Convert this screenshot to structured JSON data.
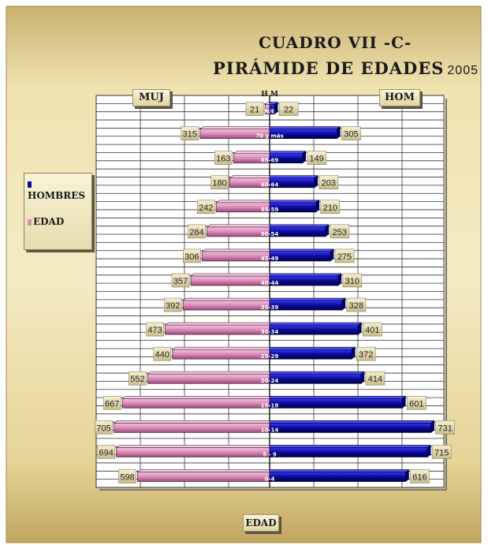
{
  "title": "CUADRO VII -C-",
  "subtitle": "PIRÁMIDE DE EDADES",
  "year": "2005",
  "left_tag": "MUJ",
  "right_tag": "HOM",
  "top_tag": "H M",
  "xlabel": "EDAD",
  "legend": {
    "hombres": "HOMBRES",
    "edad": "EDAD"
  },
  "colors": {
    "women": "#d98cb8",
    "men": "#0a0a9a",
    "background": "#e8d9a0"
  },
  "chart_data": {
    "type": "bar",
    "orientation": "horizontal-population-pyramid",
    "categories": [
      "0-4",
      "5 - 9",
      "10-14",
      "15-19",
      "20-24",
      "25-29",
      "30-34",
      "35-39",
      "40-44",
      "45-49",
      "50-54",
      "55-59",
      "60-64",
      "65-69",
      "70 y más",
      "N/E"
    ],
    "series": [
      {
        "name": "MUJ",
        "values": [
          598,
          694,
          705,
          667,
          552,
          440,
          473,
          392,
          357,
          306,
          284,
          242,
          180,
          163,
          315,
          21
        ]
      },
      {
        "name": "HOM",
        "values": [
          616,
          715,
          731,
          601,
          414,
          372,
          401,
          328,
          310,
          275,
          253,
          210,
          203,
          149,
          305,
          22
        ]
      }
    ],
    "women_labels": [
      "598",
      "694",
      "705",
      "667",
      "552",
      "440",
      "473",
      "392",
      "357",
      "306",
      "284",
      "242",
      "180",
      "163",
      "315",
      "21"
    ],
    "men_labels": [
      "616",
      "715",
      "731",
      "601",
      "414",
      "372",
      "401",
      "328",
      "310",
      "275",
      "253",
      "210",
      "203",
      "149",
      "305",
      "22"
    ],
    "xlim": [
      -750,
      750
    ],
    "grid": true,
    "legend_position": "left"
  }
}
